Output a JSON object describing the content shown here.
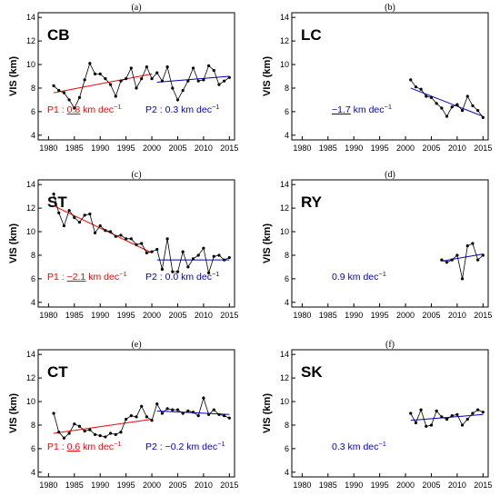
{
  "colors": {
    "obs": "#000000",
    "p1": "#ff0000",
    "p2": "#0000cc"
  },
  "chart_data": [
    {
      "type": "line",
      "panel": "(a)",
      "station": "CB",
      "ylabel": "VIS (km)",
      "xlim": [
        1978,
        2016
      ],
      "ylim": [
        3.6,
        14.4
      ],
      "xticks": [
        1980,
        1985,
        1990,
        1995,
        2000,
        2005,
        2010,
        2015
      ],
      "yticks": [
        4,
        6,
        8,
        10,
        12,
        14
      ],
      "series": [
        {
          "x": [
            1981,
            1982,
            1983,
            1984,
            1985,
            1986,
            1987,
            1988,
            1989,
            1990,
            1991,
            1992,
            1993,
            1994,
            1995,
            1996,
            1997,
            1998,
            1999,
            2000,
            2001,
            2002,
            2003,
            2004,
            2005,
            2006,
            2007,
            2008,
            2009,
            2010,
            2011,
            2012,
            2013,
            2014,
            2015
          ],
          "values": [
            8.2,
            7.8,
            7.6,
            7.0,
            6.3,
            7.2,
            8.7,
            10.1,
            9.2,
            9.2,
            8.8,
            8.3,
            7.3,
            8.6,
            8.8,
            9.7,
            8.0,
            8.8,
            9.8,
            8.8,
            9.3,
            8.6,
            9.8,
            8.0,
            7.0,
            7.8,
            8.6,
            9.7,
            8.6,
            8.7,
            9.9,
            9.5,
            8.3,
            8.6,
            8.9
          ]
        }
      ],
      "trends": [
        {
          "period": "P1",
          "x": [
            1981,
            2000
          ],
          "y": [
            7.6,
            9.2
          ]
        },
        {
          "period": "P2",
          "x": [
            2001,
            2015
          ],
          "y": [
            8.5,
            9.0
          ]
        }
      ],
      "annotations": [
        {
          "period": "P1",
          "label": "P1 : ",
          "value": "0.8",
          "unit": " km dec",
          "exp": "−1",
          "underline": true
        },
        {
          "period": "P2",
          "label": "P2 : ",
          "value": "0.3",
          "unit": " km dec",
          "exp": "−1",
          "underline": false
        }
      ]
    },
    {
      "type": "line",
      "panel": "(b)",
      "station": "LC",
      "ylabel": "VIS (km)",
      "xlim": [
        1978,
        2016
      ],
      "ylim": [
        3.6,
        14.4
      ],
      "xticks": [
        1980,
        1985,
        1990,
        1995,
        2000,
        2005,
        2010,
        2015
      ],
      "yticks": [
        4,
        6,
        8,
        10,
        12,
        14
      ],
      "series": [
        {
          "x": [
            2001,
            2002,
            2003,
            2004,
            2005,
            2006,
            2007,
            2008,
            2009,
            2010,
            2011,
            2012,
            2013,
            2014,
            2015
          ],
          "values": [
            8.7,
            8.1,
            7.9,
            7.3,
            7.2,
            6.7,
            6.3,
            5.6,
            6.4,
            6.6,
            6.1,
            7.3,
            6.5,
            6.1,
            5.5
          ]
        }
      ],
      "trends": [
        {
          "period": "P2",
          "x": [
            2001,
            2015
          ],
          "y": [
            8.0,
            5.6
          ]
        }
      ],
      "annotations": [
        {
          "period": "P2",
          "label": "",
          "value": "−1.7",
          "unit": " km dec",
          "exp": "−1",
          "underline": true
        }
      ]
    },
    {
      "type": "line",
      "panel": "(c)",
      "station": "ST",
      "ylabel": "VIS (km)",
      "xlim": [
        1978,
        2016
      ],
      "ylim": [
        3.6,
        14.4
      ],
      "xticks": [
        1980,
        1985,
        1990,
        1995,
        2000,
        2005,
        2010,
        2015
      ],
      "yticks": [
        4,
        6,
        8,
        10,
        12,
        14
      ],
      "series": [
        {
          "x": [
            1981,
            1982,
            1983,
            1984,
            1985,
            1986,
            1987,
            1988,
            1989,
            1990,
            1991,
            1992,
            1993,
            1994,
            1995,
            1996,
            1997,
            1998,
            1999,
            2000,
            2001,
            2002,
            2003,
            2004,
            2005,
            2006,
            2007,
            2008,
            2009,
            2010,
            2011,
            2012,
            2013,
            2014,
            2015
          ],
          "values": [
            13.2,
            11.6,
            10.5,
            11.8,
            11.2,
            10.8,
            11.4,
            11.5,
            9.9,
            10.5,
            10.1,
            10.0,
            9.6,
            9.7,
            9.4,
            9.4,
            8.9,
            9.0,
            8.2,
            8.3,
            8.5,
            6.8,
            9.4,
            6.6,
            6.6,
            8.3,
            7.0,
            7.7,
            8.0,
            8.6,
            6.5,
            7.9,
            8.0,
            7.6,
            7.8
          ]
        }
      ],
      "trends": [
        {
          "period": "P1",
          "x": [
            1981,
            2000
          ],
          "y": [
            12.2,
            8.2
          ]
        },
        {
          "period": "P2",
          "x": [
            2001,
            2015
          ],
          "y": [
            7.6,
            7.6
          ]
        }
      ],
      "annotations": [
        {
          "period": "P1",
          "label": "P1 : ",
          "value": "−2.1",
          "unit": " km dec",
          "exp": "−1",
          "underline": true
        },
        {
          "period": "P2",
          "label": "P2 : ",
          "value": "0.0",
          "unit": " km dec",
          "exp": "−1",
          "underline": false
        }
      ]
    },
    {
      "type": "line",
      "panel": "(d)",
      "station": "RY",
      "ylabel": "VIS (km)",
      "xlim": [
        1978,
        2016
      ],
      "ylim": [
        3.6,
        14.4
      ],
      "xticks": [
        1980,
        1985,
        1990,
        1995,
        2000,
        2005,
        2010,
        2015
      ],
      "yticks": [
        4,
        6,
        8,
        10,
        12,
        14
      ],
      "series": [
        {
          "x": [
            2007,
            2008,
            2009,
            2010,
            2011,
            2012,
            2013,
            2014,
            2015
          ],
          "values": [
            7.6,
            7.4,
            7.6,
            8.0,
            6.0,
            8.8,
            9.0,
            7.6,
            8.0
          ]
        }
      ],
      "trends": [
        {
          "period": "P2",
          "x": [
            2007,
            2015
          ],
          "y": [
            7.5,
            8.1
          ]
        }
      ],
      "annotations": [
        {
          "period": "P2",
          "label": "",
          "value": "0.9",
          "unit": " km dec",
          "exp": "−1",
          "underline": false
        }
      ]
    },
    {
      "type": "line",
      "panel": "(e)",
      "station": "CT",
      "ylabel": "VIS (km)",
      "xlim": [
        1978,
        2016
      ],
      "ylim": [
        3.6,
        14.4
      ],
      "xticks": [
        1980,
        1985,
        1990,
        1995,
        2000,
        2005,
        2010,
        2015
      ],
      "yticks": [
        4,
        6,
        8,
        10,
        12,
        14
      ],
      "series": [
        {
          "x": [
            1981,
            1982,
            1983,
            1984,
            1985,
            1986,
            1987,
            1988,
            1989,
            1990,
            1991,
            1992,
            1993,
            1994,
            1995,
            1996,
            1997,
            1998,
            1999,
            2000,
            2001,
            2002,
            2003,
            2004,
            2005,
            2006,
            2007,
            2008,
            2009,
            2010,
            2011,
            2012,
            2013,
            2014,
            2015
          ],
          "values": [
            9.0,
            7.4,
            6.9,
            7.3,
            8.1,
            7.9,
            7.5,
            7.6,
            7.2,
            7.1,
            7.0,
            7.3,
            7.2,
            7.4,
            8.5,
            8.8,
            8.7,
            9.6,
            8.7,
            8.4,
            9.8,
            9.0,
            9.4,
            9.3,
            9.3,
            9.0,
            9.2,
            9.1,
            8.8,
            10.3,
            8.9,
            9.3,
            8.9,
            8.8,
            8.6
          ]
        }
      ],
      "trends": [
        {
          "period": "P1",
          "x": [
            1981,
            2000
          ],
          "y": [
            7.3,
            8.5
          ]
        },
        {
          "period": "P2",
          "x": [
            2001,
            2015
          ],
          "y": [
            9.2,
            8.9
          ]
        }
      ],
      "annotations": [
        {
          "period": "P1",
          "label": "P1 : ",
          "value": "0.6",
          "unit": " km dec",
          "exp": "−1",
          "underline": true
        },
        {
          "period": "P2",
          "label": "P2 : ",
          "value": "−0.2",
          "unit": " km dec",
          "exp": "−1",
          "underline": false
        }
      ]
    },
    {
      "type": "line",
      "panel": "(f)",
      "station": "SK",
      "ylabel": "VIS (km)",
      "xlim": [
        1978,
        2016
      ],
      "ylim": [
        3.6,
        14.4
      ],
      "xticks": [
        1980,
        1985,
        1990,
        1995,
        2000,
        2005,
        2010,
        2015
      ],
      "yticks": [
        4,
        6,
        8,
        10,
        12,
        14
      ],
      "series": [
        {
          "x": [
            2001,
            2002,
            2003,
            2004,
            2005,
            2006,
            2007,
            2008,
            2009,
            2010,
            2011,
            2012,
            2013,
            2014,
            2015
          ],
          "values": [
            9.0,
            8.2,
            9.3,
            7.9,
            8.0,
            9.2,
            8.7,
            8.5,
            8.8,
            8.9,
            8.0,
            8.5,
            9.0,
            9.3,
            9.1
          ]
        }
      ],
      "trends": [
        {
          "period": "P2",
          "x": [
            2001,
            2015
          ],
          "y": [
            8.4,
            8.9
          ]
        }
      ],
      "annotations": [
        {
          "period": "P2",
          "label": "",
          "value": "0.3",
          "unit": " km dec",
          "exp": "−1",
          "underline": false
        }
      ]
    }
  ]
}
